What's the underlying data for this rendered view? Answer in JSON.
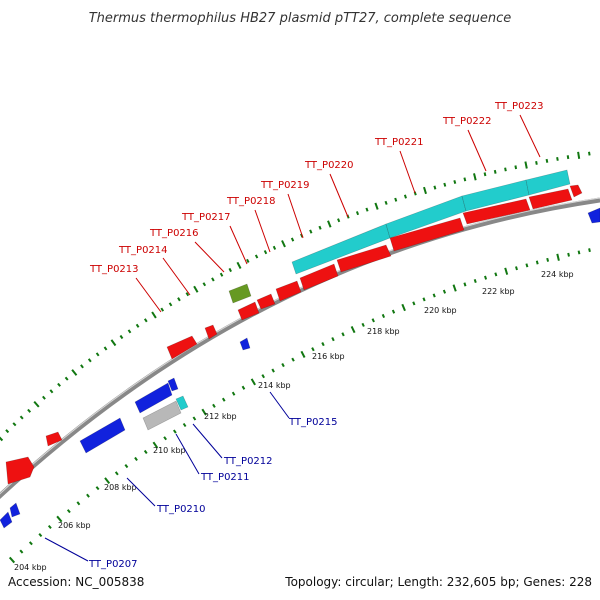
{
  "title": "Thermus thermophilus HB27 plasmid pTT27, complete sequence",
  "accession": "Accession: NC_005838",
  "summary": "Topology: circular; Length: 232,605 bp; Genes: 228",
  "colors": {
    "forward_gene": "#ee1111",
    "reverse_gene": "#1122dd",
    "rna": "#22cccc",
    "other": "#b8b8b8",
    "pseudo": "#669922",
    "backbone": "#888888",
    "tick": "#117711",
    "fwd_label": "#cc0000",
    "rev_label": "#000099"
  },
  "kbp_labels": [
    "204 kbp",
    "206 kbp",
    "208 kbp",
    "210 kbp",
    "212 kbp",
    "214 kbp",
    "216 kbp",
    "218 kbp",
    "220 kbp",
    "222 kbp",
    "224 kbp"
  ],
  "forward_labels": [
    "TT_P0213",
    "TT_P0214",
    "TT_P0216",
    "TT_P0217",
    "TT_P0218",
    "TT_P0219",
    "TT_P0220",
    "TT_P0221",
    "TT_P0222",
    "TT_P0223"
  ],
  "reverse_labels": [
    "TT_P0215",
    "TT_P0212",
    "TT_P0211",
    "TT_P0210",
    "TT_P0207"
  ]
}
